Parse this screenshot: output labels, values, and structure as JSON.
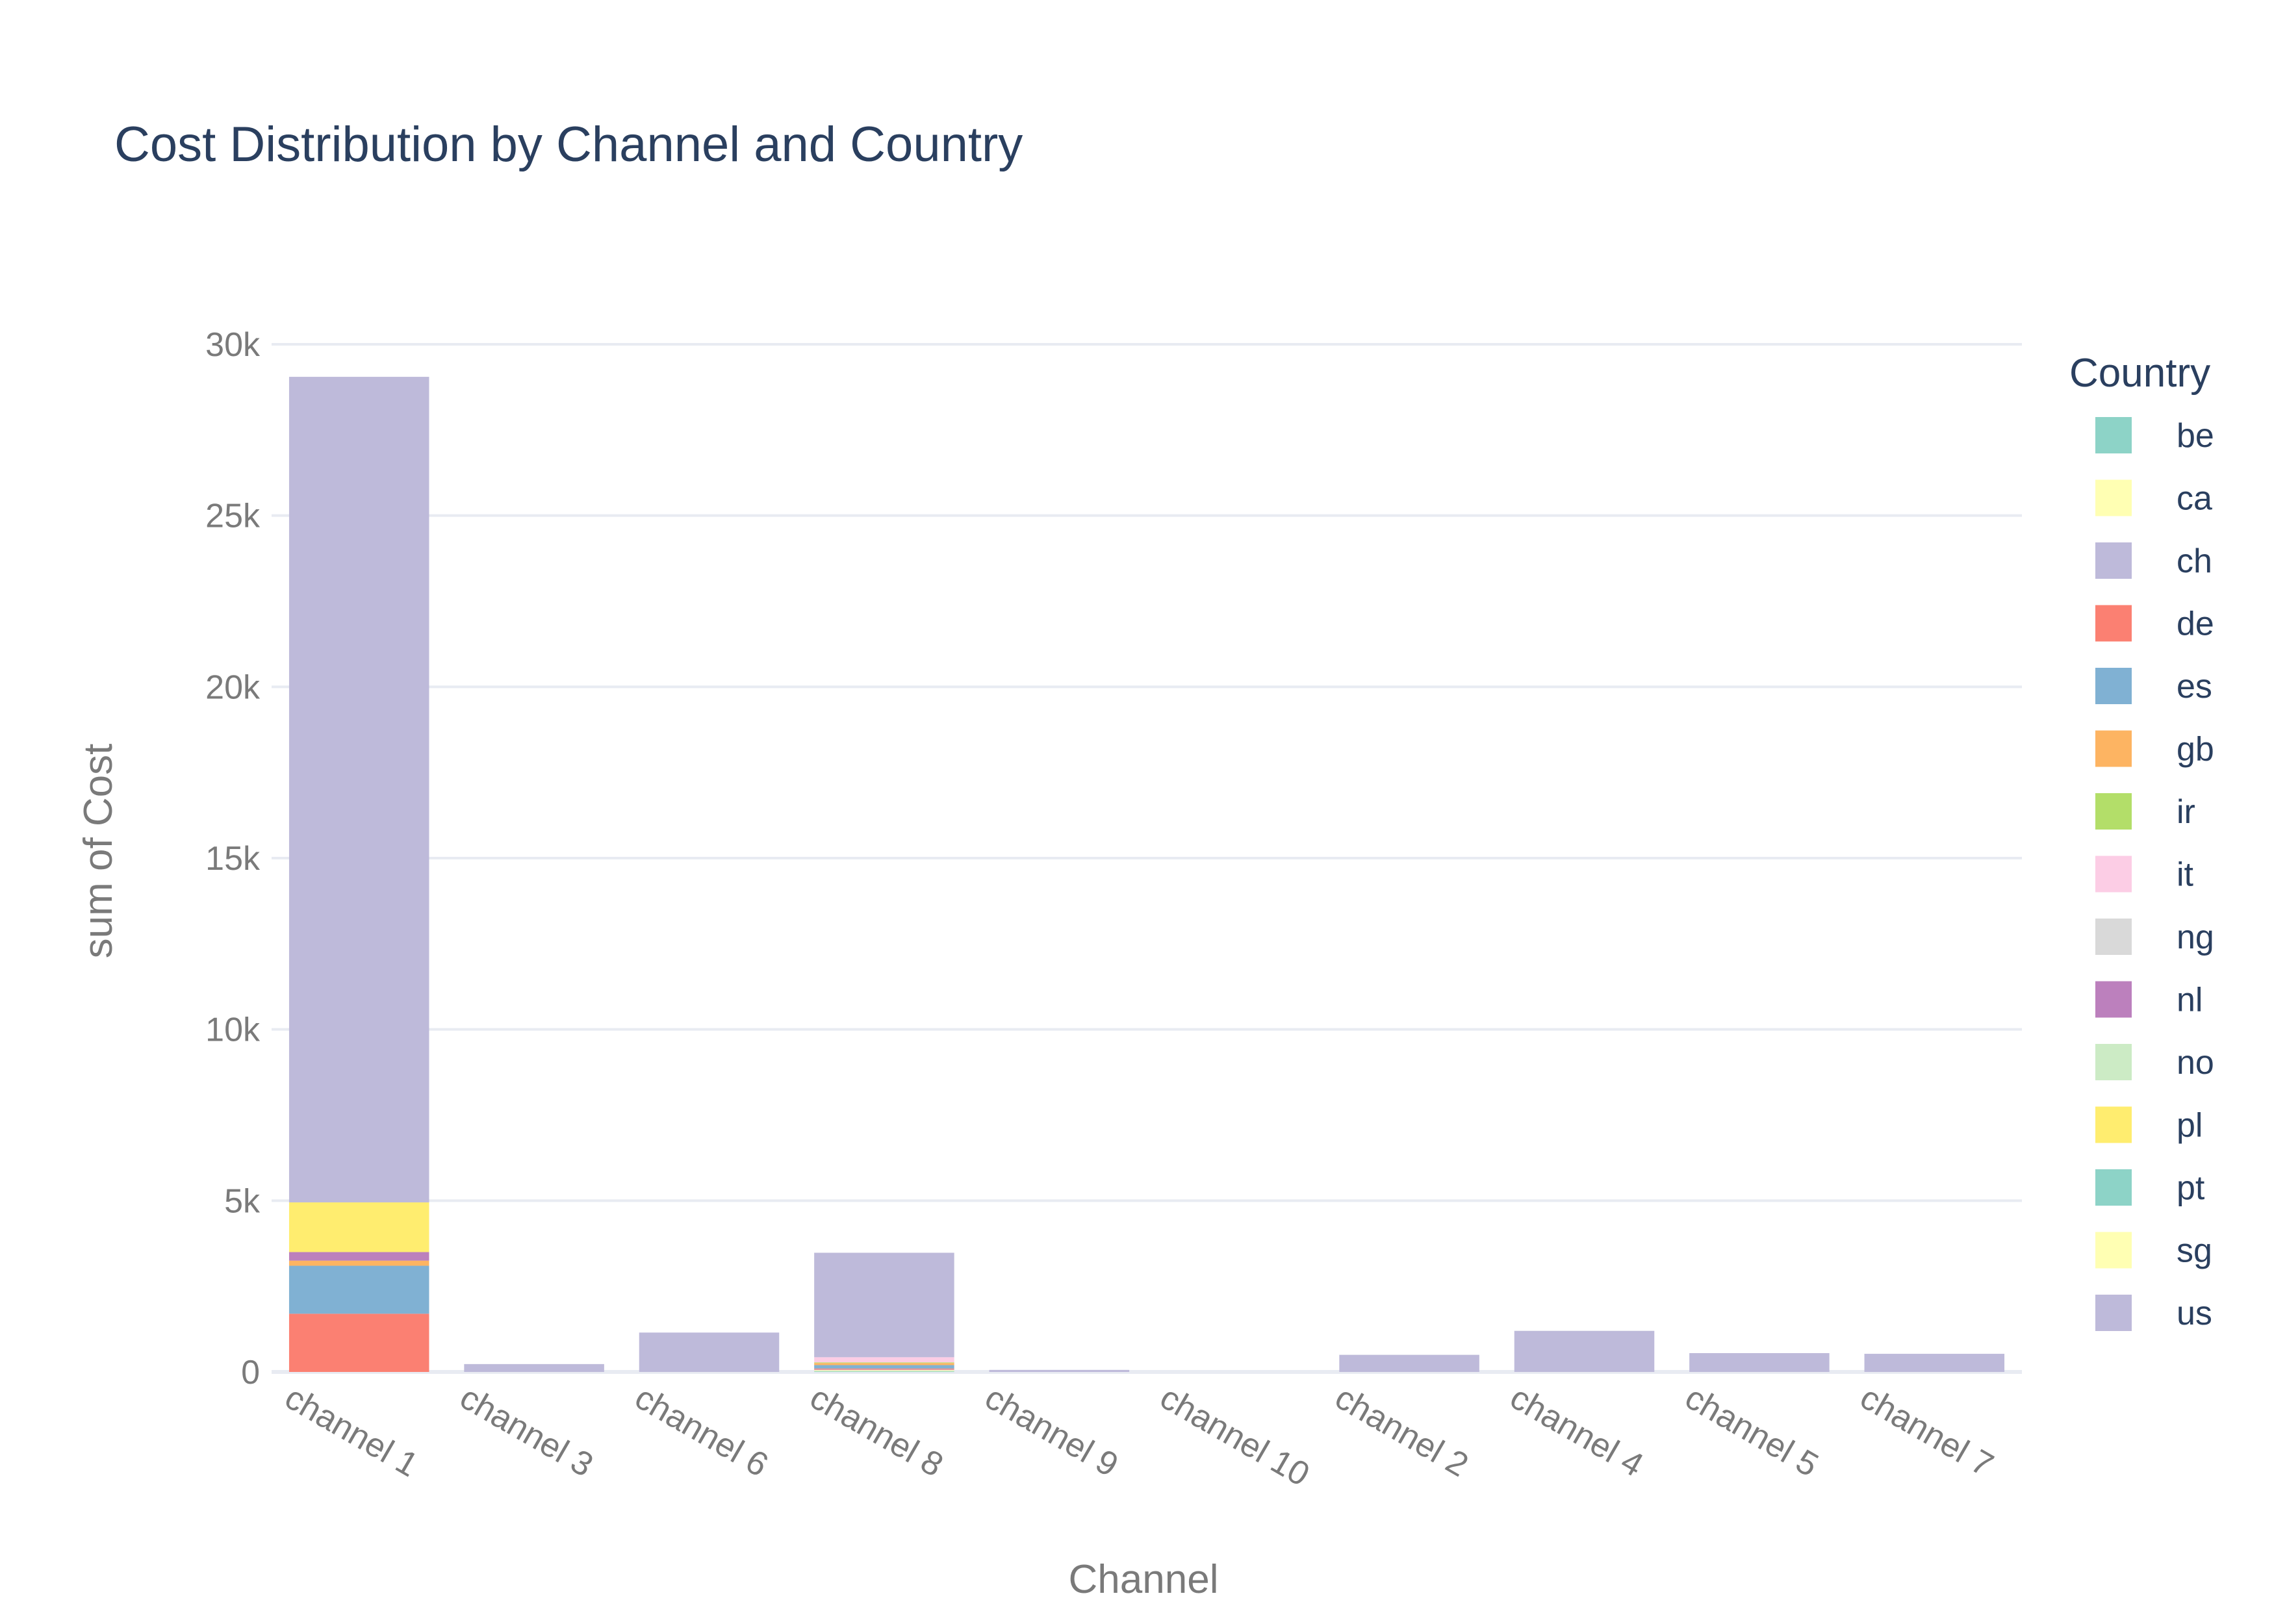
{
  "chart_data": {
    "type": "bar",
    "barmode": "stack",
    "title": "Cost Distribution by Channel and Country",
    "xlabel": "Channel",
    "ylabel": "sum of Cost",
    "legend_title": "Country",
    "legend_position": "right",
    "grid": true,
    "ylim": [
      0,
      30000
    ],
    "yticks": [
      0,
      5000,
      10000,
      15000,
      20000,
      25000,
      30000
    ],
    "ytick_labels": [
      "0",
      "5k",
      "10k",
      "15k",
      "20k",
      "25k",
      "30k"
    ],
    "categories": [
      "channel 1",
      "channel 3",
      "channel 6",
      "channel 8",
      "channel 9",
      "channel 10",
      "channel 2",
      "channel 4",
      "channel 5",
      "channel 7"
    ],
    "series": [
      {
        "name": "be",
        "color": "#8dd3c7",
        "values": [
          0,
          0,
          0,
          20,
          0,
          0,
          0,
          0,
          0,
          0
        ]
      },
      {
        "name": "ca",
        "color": "#ffffb3",
        "values": [
          0,
          0,
          0,
          30,
          0,
          0,
          0,
          0,
          0,
          0
        ]
      },
      {
        "name": "ch",
        "color": "#bebada",
        "values": [
          0,
          0,
          0,
          20,
          0,
          0,
          0,
          0,
          0,
          0
        ]
      },
      {
        "name": "de",
        "color": "#fb8072",
        "values": [
          1700,
          0,
          0,
          30,
          0,
          0,
          0,
          0,
          0,
          0
        ]
      },
      {
        "name": "es",
        "color": "#80b1d3",
        "values": [
          1400,
          0,
          0,
          100,
          0,
          0,
          0,
          0,
          0,
          0
        ]
      },
      {
        "name": "gb",
        "color": "#fdb462",
        "values": [
          150,
          0,
          0,
          60,
          0,
          0,
          0,
          0,
          0,
          0
        ]
      },
      {
        "name": "ir",
        "color": "#b3de69",
        "values": [
          0,
          0,
          0,
          20,
          0,
          0,
          0,
          0,
          0,
          0
        ]
      },
      {
        "name": "it",
        "color": "#fccde5",
        "values": [
          0,
          0,
          0,
          150,
          0,
          0,
          0,
          0,
          0,
          0
        ]
      },
      {
        "name": "ng",
        "color": "#d9d9d9",
        "values": [
          0,
          0,
          0,
          0,
          0,
          0,
          0,
          0,
          0,
          0
        ]
      },
      {
        "name": "nl",
        "color": "#bc80bd",
        "values": [
          250,
          0,
          0,
          0,
          0,
          0,
          0,
          0,
          0,
          0
        ]
      },
      {
        "name": "no",
        "color": "#ccebc5",
        "values": [
          0,
          0,
          0,
          0,
          0,
          0,
          0,
          0,
          0,
          0
        ]
      },
      {
        "name": "pl",
        "color": "#ffed6f",
        "values": [
          1450,
          0,
          0,
          0,
          0,
          0,
          0,
          0,
          0,
          0
        ]
      },
      {
        "name": "pt",
        "color": "#8dd3c7",
        "values": [
          0,
          0,
          0,
          0,
          0,
          0,
          0,
          0,
          0,
          0
        ]
      },
      {
        "name": "sg",
        "color": "#ffffb3",
        "values": [
          0,
          0,
          0,
          0,
          0,
          0,
          0,
          0,
          0,
          0
        ]
      },
      {
        "name": "us",
        "color": "#bebada",
        "values": [
          24100,
          230,
          1150,
          3050,
          60,
          0,
          500,
          1200,
          550,
          530
        ]
      }
    ]
  }
}
